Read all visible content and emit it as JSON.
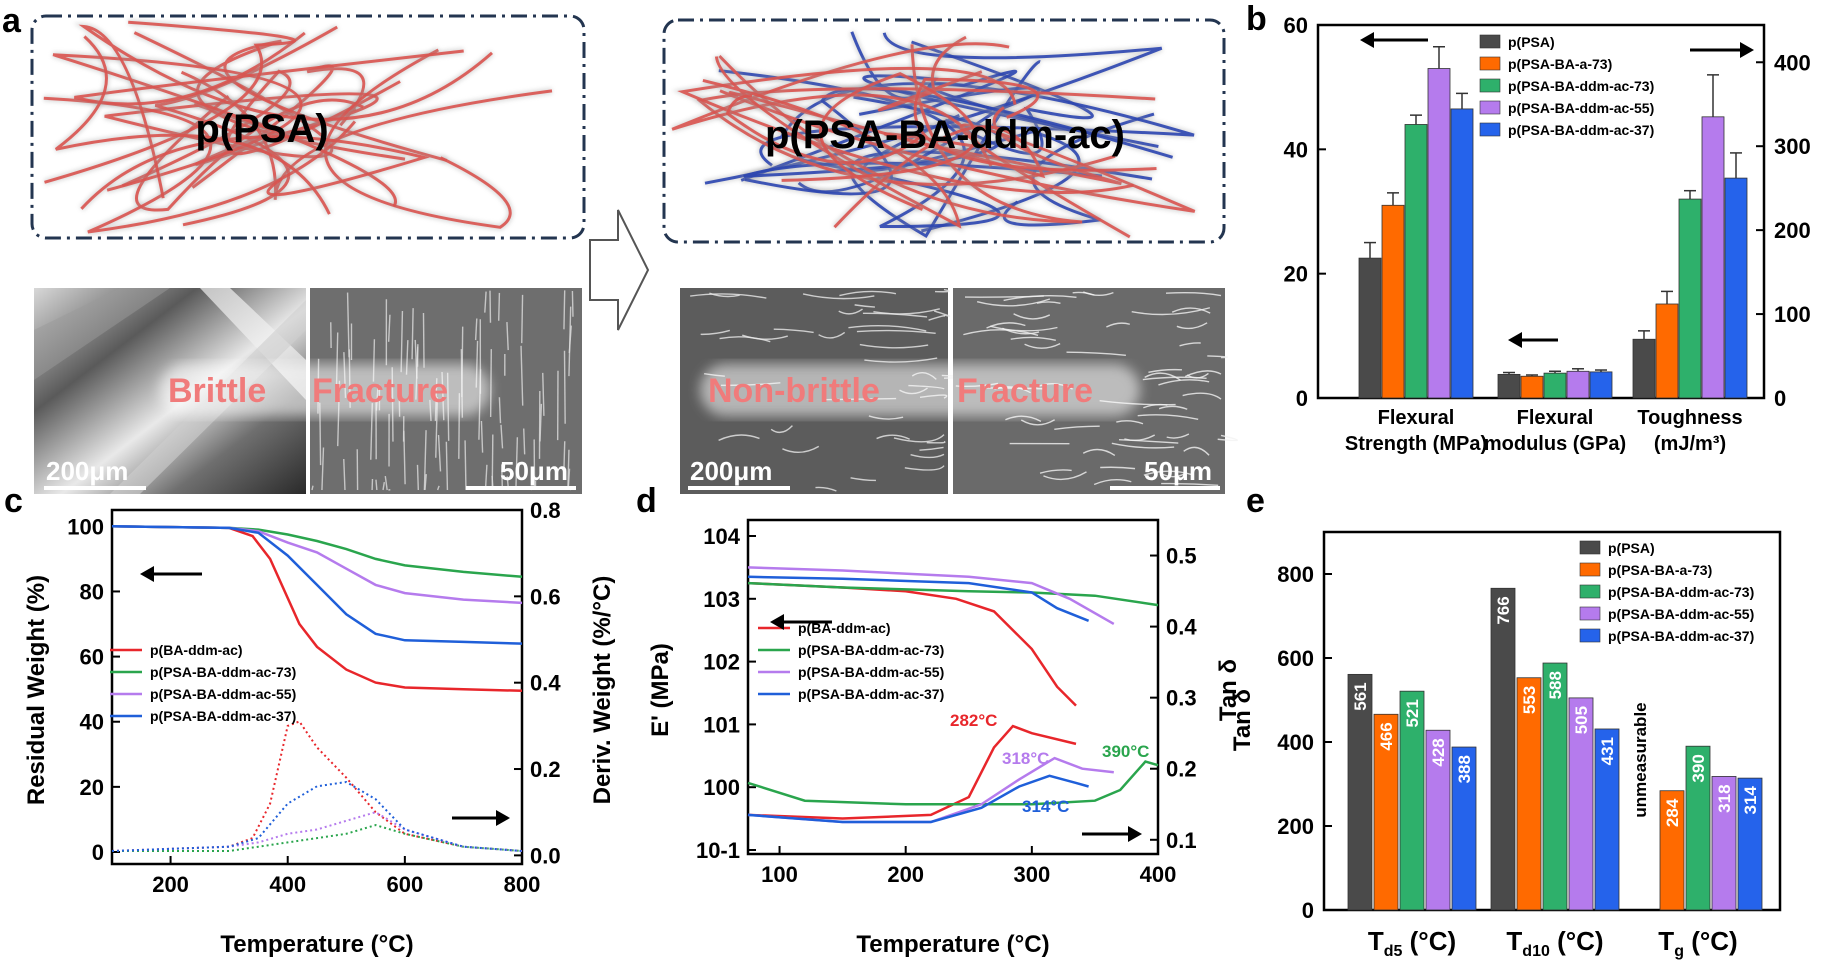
{
  "panel_a": {
    "label": "a",
    "left_network": "p(PSA)",
    "right_network": "p(PSA-BA-ddm-ac)",
    "left_caption": [
      "Brittle",
      "Fracture"
    ],
    "right_caption": [
      "Non-brittle",
      "Fracture"
    ],
    "scalebars": [
      "200μm",
      "50μm",
      "200μm",
      "50μm"
    ],
    "colors": {
      "psa_chain": "#d9534f",
      "ba_chain": "#2b45b0"
    }
  },
  "chart_data": [
    {
      "id": "b",
      "label": "b",
      "type": "bar",
      "categories": [
        "Flexural Strength (MPa)",
        "Flexural modulus (GPa)",
        "Toughness (mJ/m³)"
      ],
      "category_lines": [
        [
          "Flexural",
          "Strength (MPa)"
        ],
        [
          "Flexural",
          "modulus (GPa)"
        ],
        [
          "Toughness",
          "(mJ/m³)"
        ]
      ],
      "series": [
        {
          "name": "p(PSA)",
          "color": "#4a4a4a",
          "values": [
            22.5,
            3.8,
            70
          ],
          "errors": [
            2.5,
            0.3,
            10
          ]
        },
        {
          "name": "p(PSA-BA-a-73)",
          "color": "#ff6a00",
          "values": [
            31,
            3.5,
            112
          ],
          "errors": [
            2,
            0.2,
            15
          ]
        },
        {
          "name": "p(PSA-BA-ddm-ac-73)",
          "color": "#2eb06b",
          "values": [
            44,
            4.0,
            237
          ],
          "errors": [
            1.5,
            0.3,
            10
          ]
        },
        {
          "name": "p(PSA-BA-ddm-ac-55)",
          "color": "#b57bed",
          "values": [
            53,
            4.3,
            335
          ],
          "errors": [
            3.5,
            0.4,
            50
          ]
        },
        {
          "name": "p(PSA-BA-ddm-ac-37)",
          "color": "#2563eb",
          "values": [
            46.5,
            4.2,
            262
          ],
          "errors": [
            2.5,
            0.3,
            30
          ]
        }
      ],
      "axis_scale": [
        "left",
        "left",
        "right"
      ],
      "ylim_left": [
        0,
        60
      ],
      "ylim_right": [
        0,
        444.4
      ],
      "yticks_left": [
        "0",
        "20",
        "40",
        "60"
      ],
      "yticks_right": [
        "0",
        "100",
        "200",
        "300",
        "400"
      ]
    },
    {
      "id": "c",
      "label": "c",
      "type": "line",
      "xlabel": "Temperature (°C)",
      "ylabel": "Residual Weight (%)",
      "ylabel_right": "Deriv. Weight (%/°C)",
      "xlim": [
        100,
        800
      ],
      "ylim": [
        0,
        100
      ],
      "ylim_right": [
        -0.02,
        0.8
      ],
      "xticks": [
        "200",
        "400",
        "600",
        "800"
      ],
      "yticks": [
        "0",
        "20",
        "40",
        "60",
        "80",
        "100"
      ],
      "yticks_right": [
        "0.0",
        "0.2",
        "0.4",
        "0.6",
        "0.8"
      ],
      "series": [
        {
          "name": "p(BA-ddm-ac)",
          "color": "#e8262b",
          "x": [
            100,
            300,
            340,
            370,
            400,
            420,
            450,
            500,
            550,
            600,
            700,
            800
          ],
          "y": [
            100,
            99.5,
            97,
            90,
            78,
            70,
            63,
            56,
            52,
            50.5,
            50,
            49.5
          ],
          "deriv": [
            0.01,
            0.02,
            0.04,
            0.12,
            0.3,
            0.31,
            0.25,
            0.18,
            0.1,
            0.05,
            0.02,
            0.01
          ]
        },
        {
          "name": "p(PSA-BA-ddm-ac-73)",
          "color": "#2aa54d",
          "x": [
            100,
            300,
            350,
            400,
            450,
            500,
            550,
            600,
            700,
            800
          ],
          "y": [
            100,
            99.5,
            99,
            97.5,
            95.5,
            93,
            90,
            88,
            86,
            84.5
          ],
          "deriv": [
            0.01,
            0.01,
            0.02,
            0.03,
            0.04,
            0.05,
            0.07,
            0.05,
            0.02,
            0.01
          ]
        },
        {
          "name": "p(PSA-BA-ddm-ac-55)",
          "color": "#b57bed",
          "x": [
            100,
            300,
            350,
            400,
            450,
            500,
            550,
            600,
            700,
            800
          ],
          "y": [
            100,
            99.5,
            98.5,
            95,
            92,
            87,
            82,
            79.5,
            77.5,
            76.5
          ],
          "deriv": [
            0.01,
            0.02,
            0.03,
            0.05,
            0.06,
            0.08,
            0.1,
            0.06,
            0.02,
            0.01
          ]
        },
        {
          "name": "p(PSA-BA-ddm-ac-37)",
          "color": "#1f5fd9",
          "x": [
            100,
            300,
            350,
            400,
            450,
            500,
            550,
            600,
            700,
            800
          ],
          "y": [
            100,
            99.5,
            98,
            91,
            82,
            73,
            67,
            65,
            64.5,
            64
          ],
          "deriv": [
            0.01,
            0.02,
            0.04,
            0.12,
            0.16,
            0.17,
            0.13,
            0.06,
            0.02,
            0.01
          ]
        }
      ]
    },
    {
      "id": "d",
      "label": "d",
      "type": "line",
      "xlabel": "Temperature (°C)",
      "ylabel": "E' (MPa)",
      "ylabel_right": "Tan δ",
      "xlim": [
        75,
        400
      ],
      "ylim_log": [
        -1,
        4
      ],
      "ylim_right": [
        0.08,
        0.55
      ],
      "xticks": [
        "100",
        "200",
        "300",
        "400"
      ],
      "yticks": [
        "10-1",
        "100",
        "101",
        "102",
        "103",
        "104"
      ],
      "yticks_right": [
        "0.1",
        "0.2",
        "0.3",
        "0.4",
        "0.5"
      ],
      "series": [
        {
          "name": "p(BA-ddm-ac)",
          "color": "#e8262b",
          "x": [
            75,
            150,
            200,
            240,
            270,
            300,
            320,
            335
          ],
          "logE": [
            3.25,
            3.18,
            3.12,
            3.0,
            2.8,
            2.2,
            1.6,
            1.3
          ],
          "tan_x": [
            75,
            150,
            220,
            250,
            270,
            285,
            300,
            335
          ],
          "tan": [
            0.135,
            0.13,
            0.135,
            0.16,
            0.23,
            0.26,
            0.25,
            0.235
          ]
        },
        {
          "name": "p(PSA-BA-ddm-ac-73)",
          "color": "#2aa54d",
          "x": [
            75,
            150,
            250,
            300,
            350,
            400
          ],
          "logE": [
            3.25,
            3.18,
            3.12,
            3.1,
            3.05,
            2.9
          ],
          "tan_x": [
            75,
            120,
            200,
            300,
            350,
            370,
            390,
            400
          ],
          "tan": [
            0.18,
            0.155,
            0.15,
            0.15,
            0.155,
            0.17,
            0.21,
            0.205
          ]
        },
        {
          "name": "p(PSA-BA-ddm-ac-55)",
          "color": "#b57bed",
          "x": [
            75,
            150,
            250,
            300,
            330,
            365
          ],
          "logE": [
            3.5,
            3.45,
            3.35,
            3.25,
            3.0,
            2.6
          ],
          "tan_x": [
            75,
            150,
            220,
            260,
            290,
            318,
            340,
            365
          ],
          "tan": [
            0.135,
            0.125,
            0.125,
            0.15,
            0.185,
            0.215,
            0.2,
            0.195
          ]
        },
        {
          "name": "p(PSA-BA-ddm-ac-37)",
          "color": "#1f5fd9",
          "x": [
            75,
            150,
            250,
            300,
            320,
            345
          ],
          "logE": [
            3.35,
            3.32,
            3.25,
            3.1,
            2.85,
            2.65
          ],
          "tan_x": [
            75,
            150,
            220,
            260,
            290,
            314,
            335,
            345
          ],
          "tan": [
            0.135,
            0.125,
            0.125,
            0.145,
            0.175,
            0.19,
            0.18,
            0.175
          ]
        }
      ],
      "annotations": [
        {
          "text": "282°C",
          "color": "#e8262b"
        },
        {
          "text": "318°C",
          "color": "#b57bed"
        },
        {
          "text": "314°C",
          "color": "#1f5fd9"
        },
        {
          "text": "390°C",
          "color": "#2aa54d"
        }
      ]
    },
    {
      "id": "e",
      "label": "e",
      "type": "bar",
      "ylabel": "Tan δ",
      "ylim": [
        0,
        900
      ],
      "yticks": [
        "0",
        "200",
        "400",
        "600",
        "800"
      ],
      "categories": [
        "Td5 (°C)",
        "Td10 (°C)",
        "Tg (°C)"
      ],
      "category_labels": [
        {
          "main": "T",
          "sub": "d5",
          "rest": " (°C)"
        },
        {
          "main": "T",
          "sub": "d10",
          "rest": " (°C)"
        },
        {
          "main": "T",
          "sub": "g",
          "rest": " (°C)"
        }
      ],
      "series": [
        {
          "name": "p(PSA)",
          "color": "#4a4a4a",
          "values": [
            561,
            766,
            null
          ]
        },
        {
          "name": "p(PSA-BA-a-73)",
          "color": "#ff6a00",
          "values": [
            466,
            553,
            284
          ]
        },
        {
          "name": "p(PSA-BA-ddm-ac-73)",
          "color": "#2eb06b",
          "values": [
            521,
            588,
            390
          ]
        },
        {
          "name": "p(PSA-BA-ddm-ac-55)",
          "color": "#b57bed",
          "values": [
            428,
            505,
            318
          ]
        },
        {
          "name": "p(PSA-BA-ddm-ac-37)",
          "color": "#2563eb",
          "values": [
            388,
            431,
            314
          ]
        }
      ],
      "value_labels": [
        [
          "561",
          "766",
          null
        ],
        [
          "466",
          "553",
          "284"
        ],
        [
          "521",
          "588",
          "390"
        ],
        [
          "428",
          "505",
          "318"
        ],
        [
          "388",
          "431",
          "314"
        ]
      ],
      "missing_label": "unmeasurable"
    }
  ]
}
